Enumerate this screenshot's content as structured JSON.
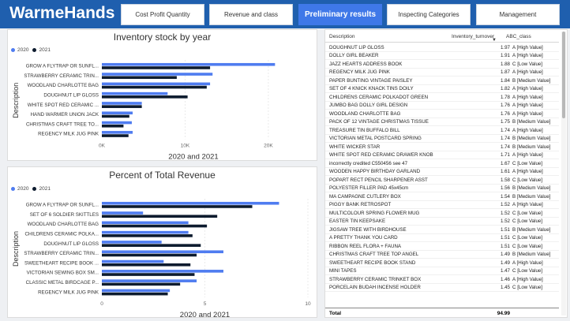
{
  "brand": "WarmeHands",
  "nav": [
    {
      "label": "Cost Profit Quantity",
      "active": false
    },
    {
      "label": "Revenue and class",
      "active": false
    },
    {
      "label": "Preliminary results",
      "active": true
    },
    {
      "label": "Inspecting Categories",
      "active": false
    },
    {
      "label": "Management",
      "active": false
    }
  ],
  "colors": {
    "series2020": "#4f7cf0",
    "series2021": "#0d1b2e",
    "brand": "#1f5fae"
  },
  "chart_data": [
    {
      "type": "bar",
      "orientation": "horizontal",
      "title": "Inventory stock by year",
      "xlabel": "2020 and 2021",
      "ylabel": "Description",
      "categories": [
        "GROW A FLYTRAP OR SUNFL...",
        "STRAWBERRY CERAMIC TRIN...",
        "WOODLAND CHARLOTTE BAG",
        "DOUGHNUT LIP GLOSS",
        "WHITE SPOT RED CERAMIC ...",
        "HAND WARMER UNION JACK",
        "CHRISTMAS CRAFT TREE TO...",
        "REGENCY MILK JUG PINK"
      ],
      "series": [
        {
          "name": "2020",
          "values": [
            20800,
            13300,
            13000,
            7900,
            4800,
            3700,
            3600,
            3700
          ]
        },
        {
          "name": "2021",
          "values": [
            13000,
            9000,
            12600,
            10300,
            4800,
            3300,
            2600,
            3200
          ]
        }
      ],
      "xticks": [
        0,
        10000,
        20000
      ],
      "xtick_labels": [
        "0K",
        "10K",
        "20K"
      ],
      "xlim": [
        0,
        22000
      ]
    },
    {
      "type": "bar",
      "orientation": "horizontal",
      "title": "Percent of Total Revenue",
      "xlabel": "2020 and 2021",
      "ylabel": "Description",
      "categories": [
        "GROW A FLYTRAP OR SUNFL...",
        "SET OF 6 SOLDIER SKITTLES",
        "WOODLAND CHARLOTTE BAG",
        "CHILDRENS CERAMIC POLKA...",
        "DOUGHNUT LIP GLOSS",
        "STRAWBERRY CERAMIC TRIN...",
        "SWEETHEART RECIPE BOOK ...",
        "VICTORIAN SEWING BOX SM...",
        "CLASSIC METAL BIRDCAGE P...",
        "REGENCY MILK JUG PINK"
      ],
      "series": [
        {
          "name": "2020",
          "values": [
            8.6,
            2.0,
            4.2,
            4.2,
            2.9,
            5.9,
            3.0,
            5.9,
            4.6,
            3.3
          ]
        },
        {
          "name": "2021",
          "values": [
            7.3,
            5.6,
            5.1,
            4.4,
            4.8,
            4.6,
            4.3,
            4.5,
            3.8,
            3.2
          ]
        }
      ],
      "xticks": [
        0,
        5,
        10
      ],
      "xtick_labels": [
        "0",
        "5",
        "10"
      ],
      "xlim": [
        0,
        10
      ]
    }
  ],
  "table": {
    "headers": {
      "description": "Description",
      "turnover": "Inventory_turnover",
      "class": "ABC_class"
    },
    "rows": [
      {
        "description": "DOUGHNUT LIP GLOSS",
        "turnover": "1.97",
        "class": "A [High Value]"
      },
      {
        "description": "DOLLY GIRL BEAKER",
        "turnover": "1.91",
        "class": "A [High Value]"
      },
      {
        "description": "JAZZ HEARTS ADDRESS BOOK",
        "turnover": "1.88",
        "class": "C [Low Value]"
      },
      {
        "description": "REGENCY MILK JUG PINK",
        "turnover": "1.87",
        "class": "A [High Value]"
      },
      {
        "description": "PAPER BUNTING VINTAGE PAISLEY",
        "turnover": "1.84",
        "class": "B [Medium Value]"
      },
      {
        "description": "SET OF 4 KNICK KNACK TINS DOILY",
        "turnover": "1.82",
        "class": "A [High Value]"
      },
      {
        "description": "CHILDRENS CERAMIC POLKADOT GREEN",
        "turnover": "1.78",
        "class": "A [High Value]"
      },
      {
        "description": "JUMBO BAG DOLLY GIRL DESIGN",
        "turnover": "1.76",
        "class": "A [High Value]"
      },
      {
        "description": "WOODLAND CHARLOTTE BAG",
        "turnover": "1.76",
        "class": "A [High Value]"
      },
      {
        "description": "PACK OF 12 VINTAGE CHRISTMAS TISSUE",
        "turnover": "1.75",
        "class": "B [Medium Value]"
      },
      {
        "description": "TREASURE TIN BUFFALO BILL",
        "turnover": "1.74",
        "class": "A [High Value]"
      },
      {
        "description": "VICTORIAN METAL POSTCARD SPRING",
        "turnover": "1.74",
        "class": "B [Medium Value]"
      },
      {
        "description": "WHITE WICKER STAR",
        "turnover": "1.74",
        "class": "B [Medium Value]"
      },
      {
        "description": "WHITE SPOT RED CERAMIC DRAWER KNOB",
        "turnover": "1.71",
        "class": "A [High Value]"
      },
      {
        "description": "incorrectly credited C550456 see 47",
        "turnover": "1.67",
        "class": "C [Low Value]"
      },
      {
        "description": "WOODEN HAPPY BIRTHDAY GARLAND",
        "turnover": "1.61",
        "class": "A [High Value]"
      },
      {
        "description": "POPART RECT PENCIL SHARPENER ASST",
        "turnover": "1.58",
        "class": "C [Low Value]"
      },
      {
        "description": "POLYESTER FILLER PAD 45x45cm",
        "turnover": "1.56",
        "class": "B [Medium Value]"
      },
      {
        "description": "MA CAMPAGNE CUTLERY BOX",
        "turnover": "1.54",
        "class": "B [Medium Value]"
      },
      {
        "description": "PIGGY BANK RETROSPOT",
        "turnover": "1.52",
        "class": "A [High Value]"
      },
      {
        "description": "MULTICOLOUR SPRING FLOWER MUG",
        "turnover": "1.52",
        "class": "C [Low Value]"
      },
      {
        "description": "EASTER TIN KEEPSAKE",
        "turnover": "1.52",
        "class": "C [Low Value]"
      },
      {
        "description": "JIGSAW TREE WITH BIRDHOUSE",
        "turnover": "1.51",
        "class": "B [Medium Value]"
      },
      {
        "description": "A PRETTY THANK YOU CARD",
        "turnover": "1.51",
        "class": "C [Low Value]"
      },
      {
        "description": "RIBBON REEL FLORA + FAUNA",
        "turnover": "1.51",
        "class": "C [Low Value]"
      },
      {
        "description": "CHRISTMAS CRAFT TREE TOP ANGEL",
        "turnover": "1.49",
        "class": "B [Medium Value]"
      },
      {
        "description": "SWEETHEART RECIPE BOOK STAND",
        "turnover": "1.49",
        "class": "A [High Value]"
      },
      {
        "description": "MINI TAPES",
        "turnover": "1.47",
        "class": "C [Low Value]"
      },
      {
        "description": "STRAWBERRY CERAMIC TRINKET BOX",
        "turnover": "1.46",
        "class": "A [High Value]"
      },
      {
        "description": "PORCELAIN BUDAH INCENSE HOLDER",
        "turnover": "1.45",
        "class": "C [Low Value]"
      }
    ],
    "total_label": "Total",
    "total_value": "94.99"
  }
}
